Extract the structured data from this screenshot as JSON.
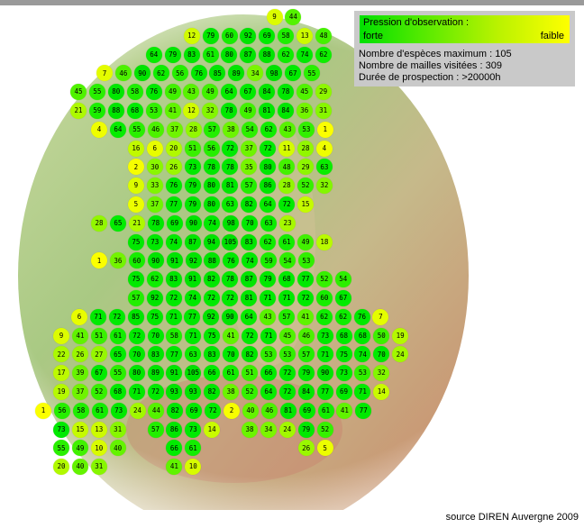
{
  "legend": {
    "title": "Pression d'observation :",
    "low_label": "forte",
    "high_label": "faible",
    "gradient_colors": [
      "#00e000",
      "#ffff00"
    ],
    "max_species": "Nombre d'espèces maximum : 105",
    "cells_visited": "Nombre de mailles visitées : 309",
    "duration": "Durée de prospection : >20000h"
  },
  "source": "source DIREN Auvergne 2009",
  "colors": {
    "forte": "#00e000",
    "faible": "#ffff00"
  },
  "grid": {
    "rows": [
      [
        null,
        null,
        null,
        null,
        null,
        9,
        44
      ],
      [
        null,
        null,
        null,
        12,
        79,
        60,
        92,
        69,
        58,
        13,
        48
      ],
      [
        null,
        null,
        64,
        79,
        83,
        61,
        80,
        87,
        88,
        62,
        74,
        62
      ],
      [
        7,
        46,
        90,
        62,
        56,
        76,
        85,
        89,
        34,
        98,
        67,
        55
      ],
      [
        45,
        55,
        80,
        58,
        76,
        49,
        43,
        49,
        64,
        67,
        84,
        78,
        45,
        29
      ],
      [
        21,
        59,
        88,
        68,
        53,
        41,
        12,
        32,
        78,
        49,
        81,
        84,
        36,
        31
      ],
      [
        4,
        64,
        55,
        46,
        37,
        28,
        57,
        38,
        54,
        62,
        43,
        53,
        1
      ],
      [
        null,
        16,
        6,
        20,
        51,
        56,
        72,
        37,
        72,
        11,
        28,
        4
      ],
      [
        null,
        2,
        30,
        26,
        73,
        78,
        78,
        35,
        80,
        48,
        29,
        63
      ],
      [
        null,
        9,
        33,
        76,
        79,
        80,
        81,
        57,
        86,
        28,
        52,
        32
      ],
      [
        null,
        5,
        37,
        77,
        79,
        80,
        63,
        82,
        64,
        72,
        15
      ],
      [
        28,
        65,
        21,
        78,
        69,
        90,
        74,
        98,
        70,
        63,
        23
      ],
      [
        null,
        75,
        73,
        74,
        87,
        94,
        105,
        83,
        62,
        61,
        49,
        18
      ],
      [
        1,
        36,
        60,
        90,
        91,
        92,
        88,
        76,
        74,
        59,
        54,
        53
      ],
      [
        null,
        75,
        62,
        83,
        91,
        82,
        78,
        87,
        79,
        68,
        77,
        52,
        54
      ],
      [
        null,
        57,
        92,
        72,
        74,
        72,
        72,
        81,
        71,
        71,
        72,
        60,
        67
      ],
      [
        6,
        71,
        72,
        85,
        75,
        71,
        77,
        92,
        90,
        64,
        43,
        57,
        41,
        62,
        62,
        76,
        7
      ],
      [
        9,
        41,
        51,
        61,
        72,
        70,
        58,
        71,
        75,
        41,
        72,
        71,
        45,
        46,
        73,
        68,
        68,
        50,
        19
      ],
      [
        22,
        26,
        27,
        65,
        70,
        83,
        77,
        63,
        83,
        70,
        82,
        53,
        53,
        57,
        71,
        75,
        74,
        70,
        24
      ],
      [
        17,
        39,
        67,
        55,
        80,
        89,
        91,
        105,
        66,
        61,
        51,
        66,
        72,
        79,
        90,
        73,
        53,
        32
      ],
      [
        19,
        37,
        52,
        68,
        71,
        72,
        93,
        93,
        82,
        38,
        52,
        64,
        72,
        84,
        77,
        69,
        71,
        14
      ],
      [
        1,
        56,
        58,
        61,
        73,
        24,
        44,
        82,
        69,
        72,
        2,
        40,
        46,
        81,
        69,
        61,
        41,
        77
      ],
      [
        73,
        15,
        13,
        31,
        null,
        57,
        86,
        73,
        14,
        null,
        38,
        34,
        24,
        79,
        52
      ],
      [
        55,
        49,
        10,
        40,
        null,
        null,
        66,
        61,
        null,
        null,
        null,
        null,
        null,
        26,
        5
      ],
      [
        20,
        40,
        31,
        null,
        null,
        null,
        41,
        10
      ]
    ]
  }
}
